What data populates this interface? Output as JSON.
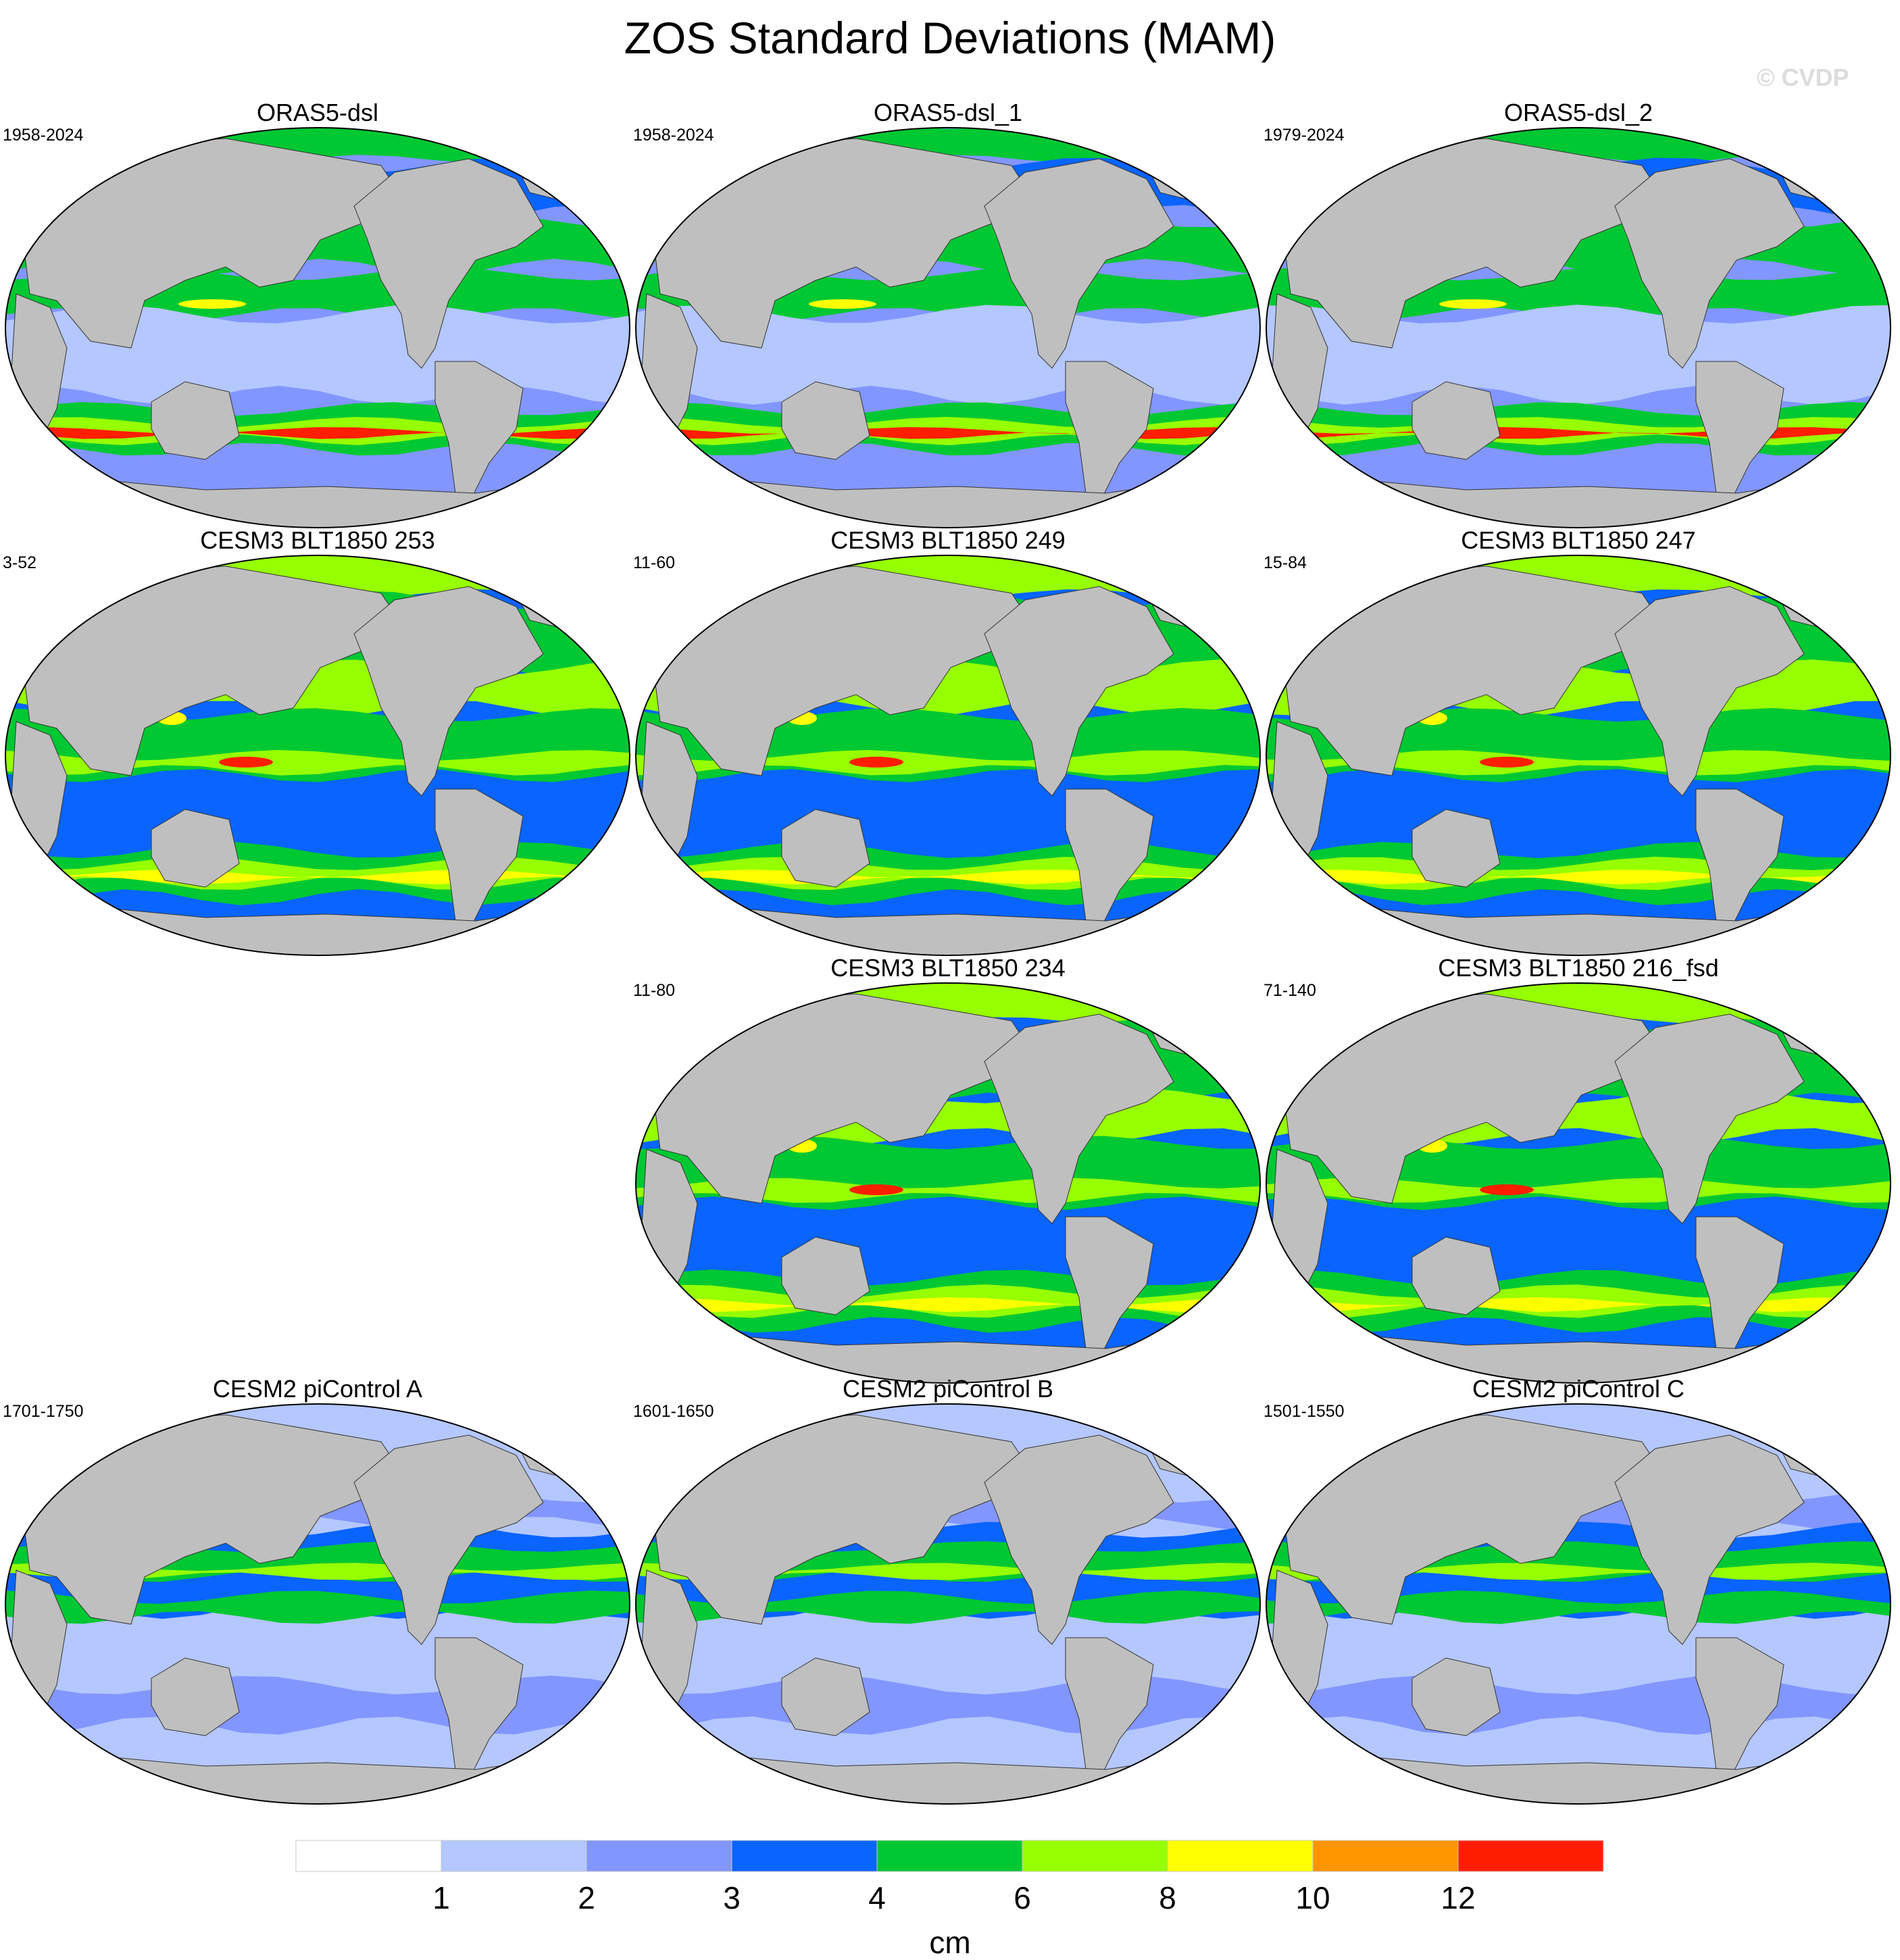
{
  "title": "ZOS Standard Deviations (MAM)",
  "watermark": "© CVDP",
  "panels": [
    {
      "title": "ORAS5-dsl",
      "period": "1958-2024",
      "variant": "obs"
    },
    {
      "title": "ORAS5-dsl_1",
      "period": "1958-2024",
      "variant": "obs"
    },
    {
      "title": "ORAS5-dsl_2",
      "period": "1979-2024",
      "variant": "obs"
    },
    {
      "title": "CESM3 BLT1850 253",
      "period": "3-52",
      "variant": "cesm3"
    },
    {
      "title": "CESM3 BLT1850 249",
      "period": "11-60",
      "variant": "cesm3"
    },
    {
      "title": "CESM3 BLT1850 247",
      "period": "15-84",
      "variant": "cesm3"
    },
    {
      "title": "CESM3 BLT1850 234",
      "period": "11-80",
      "variant": "cesm3"
    },
    {
      "title": "CESM3 BLT1850 216_fsd",
      "period": "71-140",
      "variant": "cesm3"
    },
    {
      "title": "CESM2 piControl A",
      "period": "1701-1750",
      "variant": "cesm2"
    },
    {
      "title": "CESM2 piControl B",
      "period": "1601-1650",
      "variant": "cesm2"
    },
    {
      "title": "CESM2 piControl C",
      "period": "1501-1550",
      "variant": "cesm2"
    }
  ],
  "colorbar": {
    "units": "cm",
    "levels": [
      "1",
      "2",
      "3",
      "4",
      "6",
      "8",
      "10",
      "12"
    ],
    "colors": [
      "#ffffff",
      "#b4c7ff",
      "#8296ff",
      "#0a64ff",
      "#00c832",
      "#96ff00",
      "#ffff00",
      "#ff9600",
      "#ff1e00"
    ]
  },
  "map_colors": {
    "land": "#bfbfbf",
    "outline": "#000000"
  }
}
